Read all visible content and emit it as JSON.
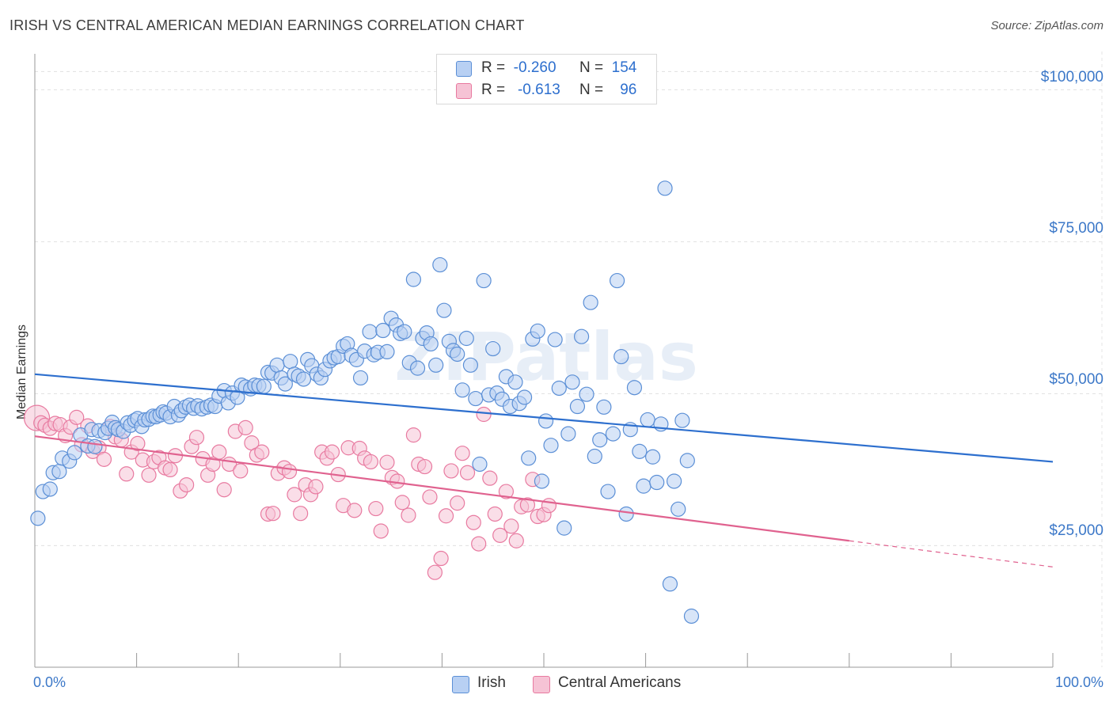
{
  "title": "IRISH VS CENTRAL AMERICAN MEDIAN EARNINGS CORRELATION CHART",
  "source": "Source: ZipAtlas.com",
  "watermark": "ZIPatlas",
  "colors": {
    "irish": "#5b8fd6",
    "irish_fill": "#b8d0f3",
    "central": "#e87aa0",
    "central_fill": "#f6c3d5",
    "irish_line": "#2d6fce",
    "central_line": "#e0628f",
    "tick_text": "#3c78c8"
  },
  "legend_box": {
    "rows": [
      {
        "r_label": "R =",
        "r_value": "-0.260",
        "n_label": "N =",
        "n_value": "154"
      },
      {
        "r_label": "R =",
        "r_value": "-0.613",
        "n_label": "N =",
        "n_value": "96"
      }
    ]
  },
  "chart_data": {
    "type": "scatter",
    "title": "IRISH VS CENTRAL AMERICAN MEDIAN EARNINGS CORRELATION CHART",
    "xlabel": "",
    "ylabel": "Median Earnings",
    "xlim": [
      0,
      100
    ],
    "ylim": [
      5000,
      105000
    ],
    "x_tick_labels": [
      "0.0%",
      "100.0%"
    ],
    "y_ticks": [
      25000,
      50000,
      75000,
      100000
    ],
    "y_tick_labels": [
      "$25,000",
      "$50,000",
      "$75,000",
      "$100,000"
    ],
    "grid": true,
    "legend_placement": "bottom-center",
    "series": [
      {
        "name": "Irish",
        "R": -0.26,
        "N": 154,
        "trend": {
          "x": [
            0,
            100
          ],
          "y": [
            53200,
            38800
          ]
        },
        "points": [
          [
            0.3,
            29500
          ],
          [
            0.8,
            33900
          ],
          [
            1.5,
            34300
          ],
          [
            1.8,
            37000
          ],
          [
            2.4,
            37200
          ],
          [
            2.7,
            39400
          ],
          [
            3.4,
            38900
          ],
          [
            3.9,
            40300
          ],
          [
            4.5,
            43200
          ],
          [
            5.2,
            41400
          ],
          [
            5.6,
            44100
          ],
          [
            5.9,
            41300
          ],
          [
            6.3,
            43900
          ],
          [
            6.9,
            43600
          ],
          [
            7.2,
            44300
          ],
          [
            7.6,
            45300
          ],
          [
            7.9,
            44400
          ],
          [
            8.2,
            44100
          ],
          [
            8.7,
            43800
          ],
          [
            9.1,
            45200
          ],
          [
            9.4,
            44800
          ],
          [
            9.8,
            45600
          ],
          [
            10.1,
            45900
          ],
          [
            10.5,
            44600
          ],
          [
            10.8,
            45700
          ],
          [
            11.2,
            45800
          ],
          [
            11.6,
            46300
          ],
          [
            11.9,
            46200
          ],
          [
            12.3,
            46500
          ],
          [
            12.6,
            47000
          ],
          [
            12.9,
            46800
          ],
          [
            13.3,
            46200
          ],
          [
            13.7,
            47900
          ],
          [
            14.1,
            46500
          ],
          [
            14.4,
            47200
          ],
          [
            14.8,
            47800
          ],
          [
            15.2,
            48100
          ],
          [
            15.6,
            47600
          ],
          [
            16.0,
            48000
          ],
          [
            16.4,
            47500
          ],
          [
            16.9,
            47800
          ],
          [
            17.3,
            48100
          ],
          [
            17.7,
            47900
          ],
          [
            18.1,
            49600
          ],
          [
            18.6,
            50500
          ],
          [
            19.0,
            48500
          ],
          [
            19.4,
            50100
          ],
          [
            19.9,
            49400
          ],
          [
            20.3,
            51400
          ],
          [
            20.7,
            51100
          ],
          [
            21.2,
            50800
          ],
          [
            21.6,
            51400
          ],
          [
            22.0,
            51300
          ],
          [
            22.5,
            51200
          ],
          [
            22.9,
            53500
          ],
          [
            23.3,
            53400
          ],
          [
            23.8,
            54700
          ],
          [
            24.2,
            52600
          ],
          [
            24.6,
            51600
          ],
          [
            25.1,
            55300
          ],
          [
            25.5,
            53200
          ],
          [
            25.9,
            52900
          ],
          [
            26.4,
            52400
          ],
          [
            26.8,
            55600
          ],
          [
            27.2,
            54600
          ],
          [
            27.7,
            53200
          ],
          [
            28.1,
            52600
          ],
          [
            28.5,
            54000
          ],
          [
            29.0,
            55400
          ],
          [
            29.4,
            55900
          ],
          [
            29.8,
            56100
          ],
          [
            30.3,
            57800
          ],
          [
            30.7,
            58200
          ],
          [
            31.1,
            56300
          ],
          [
            31.6,
            55600
          ],
          [
            32.0,
            52600
          ],
          [
            32.4,
            57000
          ],
          [
            32.9,
            60200
          ],
          [
            33.3,
            56400
          ],
          [
            33.7,
            56800
          ],
          [
            34.2,
            60400
          ],
          [
            34.6,
            56900
          ],
          [
            35.0,
            62400
          ],
          [
            35.5,
            61300
          ],
          [
            35.9,
            59900
          ],
          [
            36.3,
            60200
          ],
          [
            36.8,
            55100
          ],
          [
            37.2,
            68800
          ],
          [
            37.6,
            54200
          ],
          [
            38.1,
            59100
          ],
          [
            38.5,
            60000
          ],
          [
            38.9,
            58200
          ],
          [
            39.4,
            54700
          ],
          [
            39.8,
            71200
          ],
          [
            40.2,
            63700
          ],
          [
            40.7,
            58600
          ],
          [
            41.1,
            57100
          ],
          [
            41.5,
            56500
          ],
          [
            42.0,
            50600
          ],
          [
            42.4,
            59100
          ],
          [
            42.8,
            54700
          ],
          [
            43.3,
            49200
          ],
          [
            43.7,
            38400
          ],
          [
            44.1,
            68600
          ],
          [
            44.6,
            49800
          ],
          [
            45.0,
            57400
          ],
          [
            45.4,
            50100
          ],
          [
            45.9,
            49100
          ],
          [
            46.3,
            52800
          ],
          [
            46.7,
            47900
          ],
          [
            47.2,
            51900
          ],
          [
            47.6,
            48400
          ],
          [
            48.1,
            49400
          ],
          [
            48.5,
            39400
          ],
          [
            48.9,
            59000
          ],
          [
            49.4,
            60300
          ],
          [
            49.8,
            35600
          ],
          [
            50.2,
            45500
          ],
          [
            50.7,
            41500
          ],
          [
            51.1,
            58900
          ],
          [
            51.5,
            50900
          ],
          [
            52.0,
            27900
          ],
          [
            52.4,
            43400
          ],
          [
            52.8,
            51900
          ],
          [
            53.3,
            47900
          ],
          [
            53.7,
            59400
          ],
          [
            54.2,
            49900
          ],
          [
            54.6,
            65000
          ],
          [
            55.0,
            39700
          ],
          [
            55.5,
            42400
          ],
          [
            55.9,
            47800
          ],
          [
            56.3,
            33900
          ],
          [
            56.8,
            43400
          ],
          [
            57.2,
            68600
          ],
          [
            57.6,
            56100
          ],
          [
            58.1,
            30200
          ],
          [
            58.5,
            44100
          ],
          [
            58.9,
            51000
          ],
          [
            59.4,
            40500
          ],
          [
            59.8,
            34800
          ],
          [
            60.2,
            45700
          ],
          [
            60.7,
            39600
          ],
          [
            61.1,
            35400
          ],
          [
            61.5,
            45000
          ],
          [
            61.9,
            83800
          ],
          [
            62.4,
            18700
          ],
          [
            62.8,
            35600
          ],
          [
            63.2,
            31000
          ],
          [
            63.6,
            45600
          ],
          [
            64.1,
            39000
          ],
          [
            64.5,
            13400
          ]
        ]
      },
      {
        "name": "Central Americans",
        "R": -0.613,
        "N": 96,
        "trend": {
          "x": [
            0,
            100
          ],
          "y": [
            43000,
            21500
          ],
          "solid_until": 80
        },
        "points": [
          [
            0.2,
            46000
          ],
          [
            0.6,
            45200
          ],
          [
            1.0,
            44800
          ],
          [
            1.5,
            44300
          ],
          [
            2.0,
            45100
          ],
          [
            2.5,
            44900
          ],
          [
            3.0,
            43100
          ],
          [
            3.5,
            44500
          ],
          [
            4.1,
            46100
          ],
          [
            4.6,
            41600
          ],
          [
            5.2,
            44700
          ],
          [
            5.7,
            40500
          ],
          [
            6.3,
            41100
          ],
          [
            6.8,
            39200
          ],
          [
            7.4,
            44600
          ],
          [
            7.9,
            42900
          ],
          [
            8.5,
            42400
          ],
          [
            9.0,
            36800
          ],
          [
            9.5,
            40400
          ],
          [
            10.1,
            41800
          ],
          [
            10.6,
            39100
          ],
          [
            11.2,
            36600
          ],
          [
            11.7,
            38800
          ],
          [
            12.2,
            39500
          ],
          [
            12.8,
            37800
          ],
          [
            13.3,
            37500
          ],
          [
            13.8,
            39800
          ],
          [
            14.3,
            34000
          ],
          [
            14.9,
            35000
          ],
          [
            15.4,
            41300
          ],
          [
            15.9,
            42800
          ],
          [
            16.5,
            39300
          ],
          [
            17.0,
            36600
          ],
          [
            17.5,
            38400
          ],
          [
            18.1,
            40400
          ],
          [
            18.6,
            34200
          ],
          [
            19.1,
            38400
          ],
          [
            19.7,
            43800
          ],
          [
            20.2,
            37300
          ],
          [
            20.7,
            44400
          ],
          [
            21.3,
            41900
          ],
          [
            21.8,
            39900
          ],
          [
            22.3,
            40400
          ],
          [
            22.9,
            30200
          ],
          [
            23.4,
            30300
          ],
          [
            23.9,
            36900
          ],
          [
            24.5,
            37800
          ],
          [
            25.0,
            37200
          ],
          [
            25.5,
            33400
          ],
          [
            26.1,
            30300
          ],
          [
            26.6,
            35000
          ],
          [
            27.1,
            33400
          ],
          [
            27.6,
            34700
          ],
          [
            28.2,
            40400
          ],
          [
            28.7,
            39400
          ],
          [
            29.2,
            40400
          ],
          [
            29.8,
            36700
          ],
          [
            30.3,
            31600
          ],
          [
            30.8,
            41100
          ],
          [
            31.4,
            30800
          ],
          [
            31.9,
            41000
          ],
          [
            32.4,
            39400
          ],
          [
            33.0,
            38800
          ],
          [
            33.5,
            31100
          ],
          [
            34.0,
            27400
          ],
          [
            34.6,
            38700
          ],
          [
            35.1,
            36200
          ],
          [
            35.6,
            35600
          ],
          [
            36.1,
            32100
          ],
          [
            36.7,
            30000
          ],
          [
            37.2,
            43200
          ],
          [
            37.7,
            38400
          ],
          [
            38.3,
            38000
          ],
          [
            38.8,
            33000
          ],
          [
            39.3,
            20600
          ],
          [
            39.9,
            22900
          ],
          [
            40.4,
            29900
          ],
          [
            40.9,
            37300
          ],
          [
            41.5,
            32000
          ],
          [
            42.0,
            40200
          ],
          [
            42.5,
            37000
          ],
          [
            43.1,
            28800
          ],
          [
            43.6,
            25300
          ],
          [
            44.1,
            46600
          ],
          [
            44.7,
            36100
          ],
          [
            45.2,
            30200
          ],
          [
            45.7,
            26700
          ],
          [
            46.3,
            33900
          ],
          [
            46.8,
            28200
          ],
          [
            47.3,
            25800
          ],
          [
            47.8,
            31400
          ],
          [
            48.4,
            31700
          ],
          [
            48.9,
            35900
          ],
          [
            49.4,
            29800
          ],
          [
            50.0,
            30100
          ],
          [
            50.5,
            31600
          ]
        ]
      }
    ]
  },
  "axis_labels": {
    "x_left": "0.0%",
    "x_right": "100.0%",
    "y_100k": "$100,000",
    "y_75k": "$75,000",
    "y_50k": "$50,000",
    "y_25k": "$25,000"
  },
  "bottom_legend": {
    "irish": "Irish",
    "central": "Central Americans"
  }
}
